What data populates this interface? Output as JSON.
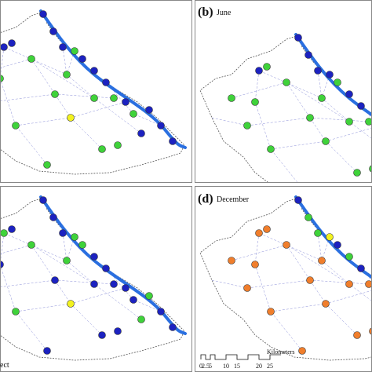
{
  "panels": [
    {
      "label": "(b)",
      "month": "June"
    },
    {
      "label": "(d)",
      "month": "December"
    }
  ],
  "fragments": [
    "ect"
  ],
  "scale_bar": {
    "ticks": [
      "0",
      "2.5",
      "5",
      "10",
      "15",
      "20",
      "25"
    ],
    "unit": "Kilometers"
  }
}
